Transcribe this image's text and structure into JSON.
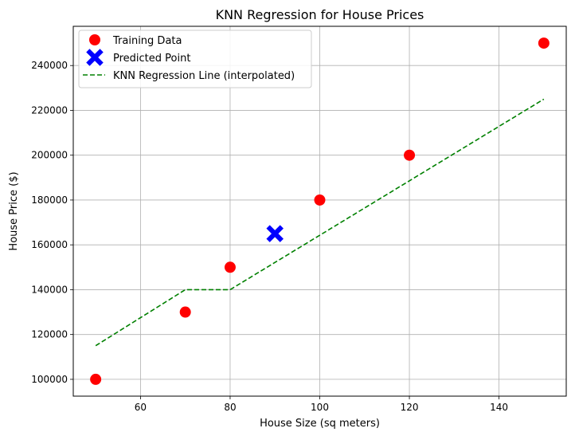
{
  "chart_data": {
    "type": "scatter",
    "title": "KNN Regression for House Prices",
    "xlabel": "House Size (sq meters)",
    "ylabel": "House Price ($)",
    "xlim": [
      45.0,
      155.0
    ],
    "ylim": [
      92500,
      257500
    ],
    "grid": true,
    "legend_position": "top-left",
    "x_ticks": [
      60,
      80,
      100,
      120,
      140
    ],
    "y_ticks": [
      100000,
      120000,
      140000,
      160000,
      180000,
      200000,
      220000,
      240000
    ],
    "series": [
      {
        "name": "Training Data",
        "kind": "scatter",
        "marker": "circle",
        "color": "#ff0000",
        "x": [
          50,
          70,
          80,
          100,
          120,
          150
        ],
        "y": [
          100000,
          130000,
          150000,
          180000,
          200000,
          250000
        ]
      },
      {
        "name": "Predicted Point",
        "kind": "scatter",
        "marker": "X",
        "color": "#0000ff",
        "x": [
          90
        ],
        "y": [
          165000
        ]
      },
      {
        "name": "KNN Regression Line (interpolated)",
        "kind": "line",
        "style": "dashed",
        "color": "#008000",
        "x": [
          50,
          70,
          80,
          150
        ],
        "y": [
          115000,
          140000,
          140000,
          225000
        ]
      }
    ]
  }
}
